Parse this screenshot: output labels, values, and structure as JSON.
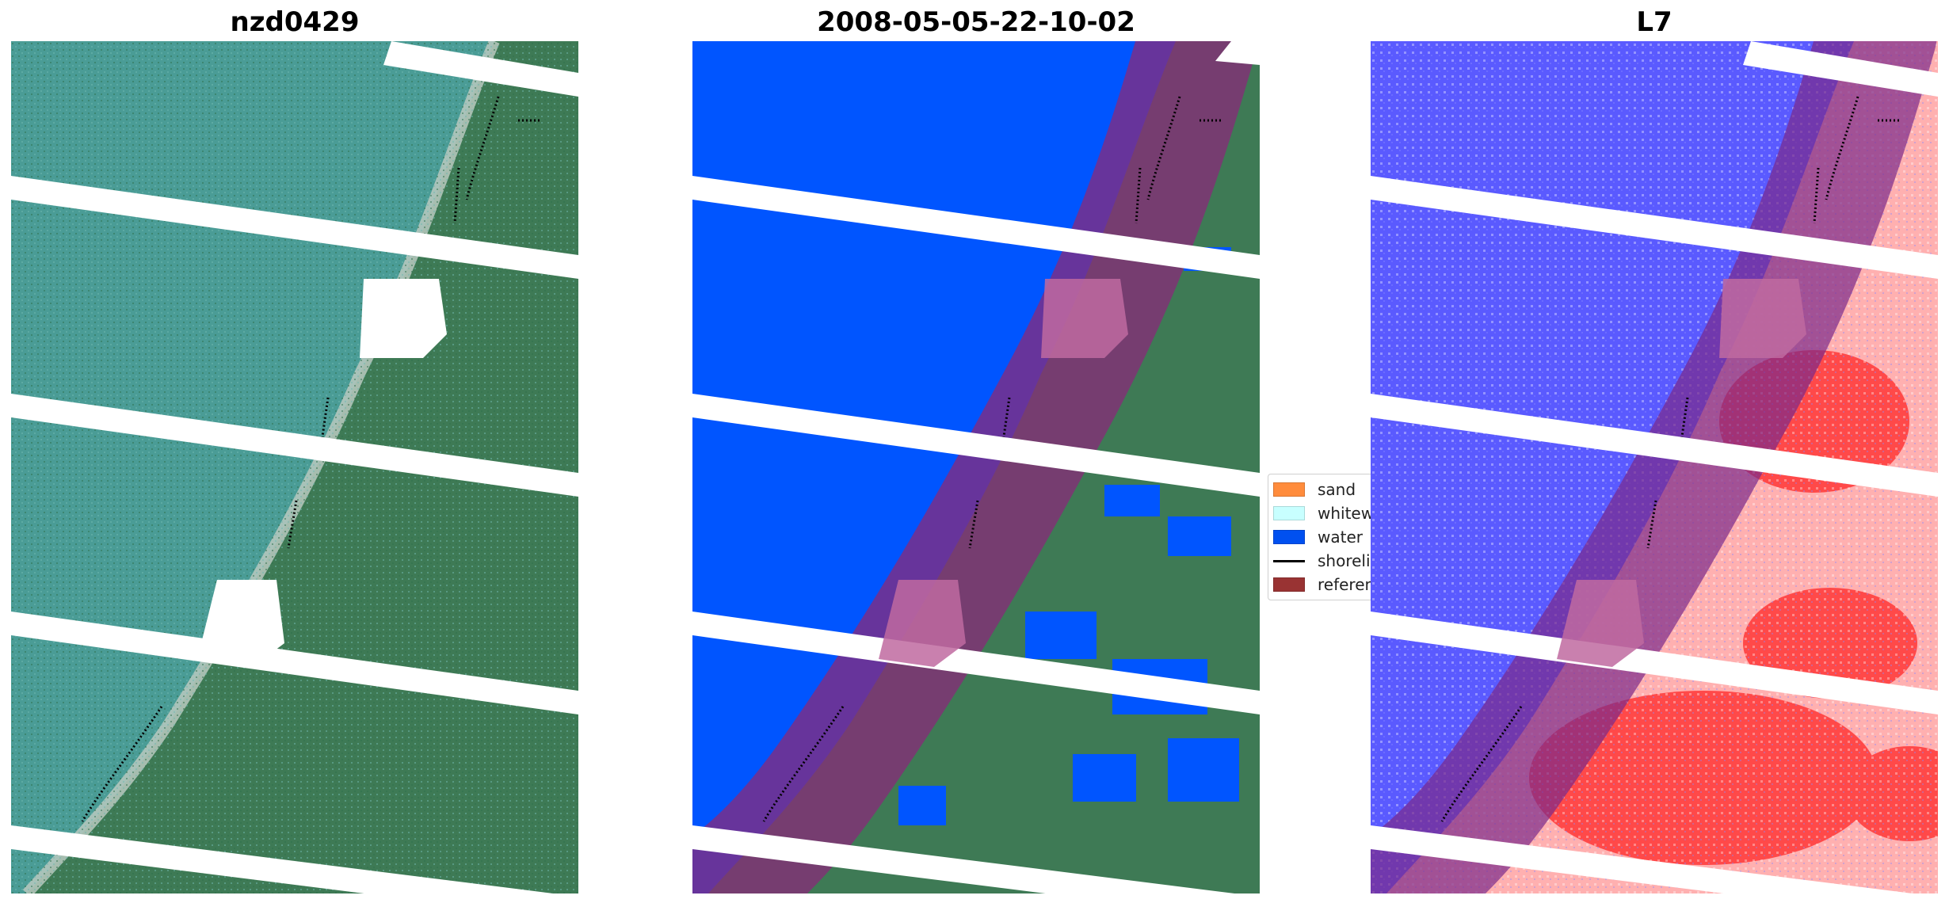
{
  "panels": [
    {
      "title": "nzd0429"
    },
    {
      "title": "2008-05-05-22-10-02"
    },
    {
      "title": "L7"
    }
  ],
  "legend": {
    "items": [
      {
        "label": "sand",
        "color": "#ff8c3c",
        "kind": "patch"
      },
      {
        "label": "whitewater",
        "color": "#c8ffff",
        "kind": "patch"
      },
      {
        "label": "water",
        "color": "#0050f0",
        "kind": "patch"
      },
      {
        "label": "shoreline",
        "color": "#000000",
        "kind": "line"
      },
      {
        "label": "reference shoreline buffer",
        "color": "#993333",
        "kind": "patch"
      }
    ]
  },
  "colors": {
    "sea_rgb": "#4a9c96",
    "land_rgb": "#3e7a55",
    "water_class": "#0055ff",
    "buffer": "#7a2a8a",
    "index_water": "#5a5aff",
    "index_land": "#ff3030"
  }
}
